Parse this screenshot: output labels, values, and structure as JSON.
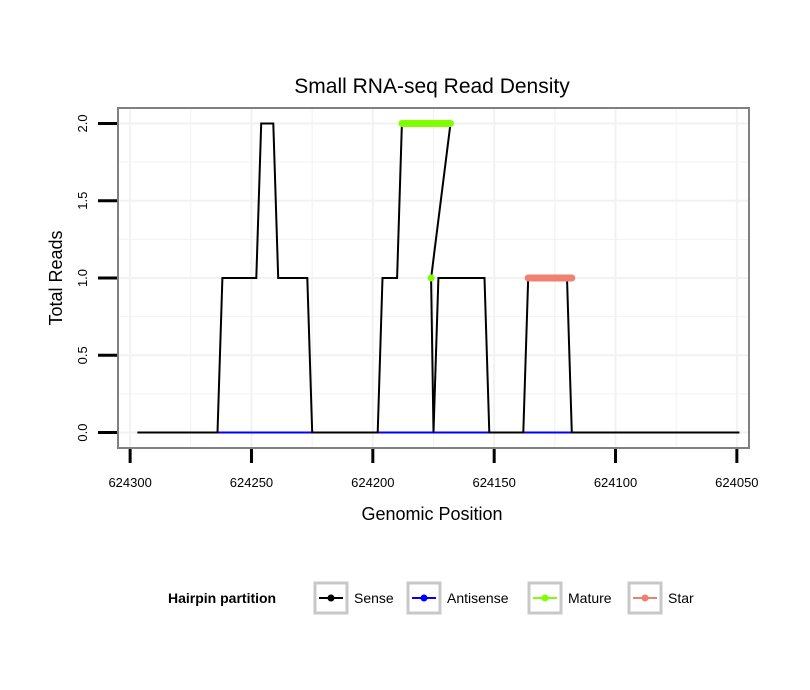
{
  "chart_data": {
    "type": "line",
    "title": "Small RNA-seq Read Density",
    "xlabel": "Genomic Position",
    "ylabel": "Total Reads",
    "xlim": [
      624305,
      624045
    ],
    "x_reversed": true,
    "ylim": [
      -0.1,
      2.1
    ],
    "x_ticks": [
      624300,
      624250,
      624200,
      624150,
      624100,
      624050
    ],
    "x_tick_labels": [
      "624300",
      "624250",
      "624200",
      "624150",
      "624100",
      "624050"
    ],
    "y_ticks": [
      0,
      0.5,
      1,
      1.5,
      2
    ],
    "y_tick_labels": [
      "0.0",
      "0.5",
      "1.0",
      "1.5",
      "2.0"
    ],
    "grid": true,
    "series": [
      {
        "name": "Antisense",
        "color": "#0000ff",
        "x": [
          624297,
          624049
        ],
        "y": [
          0,
          0
        ]
      },
      {
        "name": "Sense",
        "color": "#000000",
        "x": [
          624297,
          624264,
          624262,
          624248,
          624246,
          624241,
          624239,
          624227,
          624225,
          624198,
          624196,
          624190,
          624188,
          624168,
          624176,
          624175,
          624173,
          624154,
          624152,
          624138,
          624136,
          624120,
          624118,
          624049
        ],
        "y": [
          0,
          0,
          1,
          1,
          2,
          2,
          1,
          1,
          0,
          0,
          1,
          1,
          2,
          2,
          1,
          0,
          1,
          1,
          0,
          0,
          1,
          1,
          0,
          0
        ]
      },
      {
        "name": "Mature",
        "color": "#7fff00",
        "segments": [
          {
            "x": [
              624188,
              624168
            ],
            "y": [
              2,
              2
            ]
          },
          {
            "x": [
              624176,
              624176
            ],
            "y": [
              1,
              1
            ]
          }
        ]
      },
      {
        "name": "Star",
        "color": "#f08070",
        "segments": [
          {
            "x": [
              624136,
              624118
            ],
            "y": [
              1,
              1
            ]
          }
        ]
      }
    ],
    "legend": {
      "title": "Hairpin partition",
      "position": "bottom",
      "entries": [
        {
          "label": "Sense",
          "color": "#000000"
        },
        {
          "label": "Antisense",
          "color": "#0000ff"
        },
        {
          "label": "Mature",
          "color": "#7fff00"
        },
        {
          "label": "Star",
          "color": "#f08070"
        }
      ]
    }
  }
}
